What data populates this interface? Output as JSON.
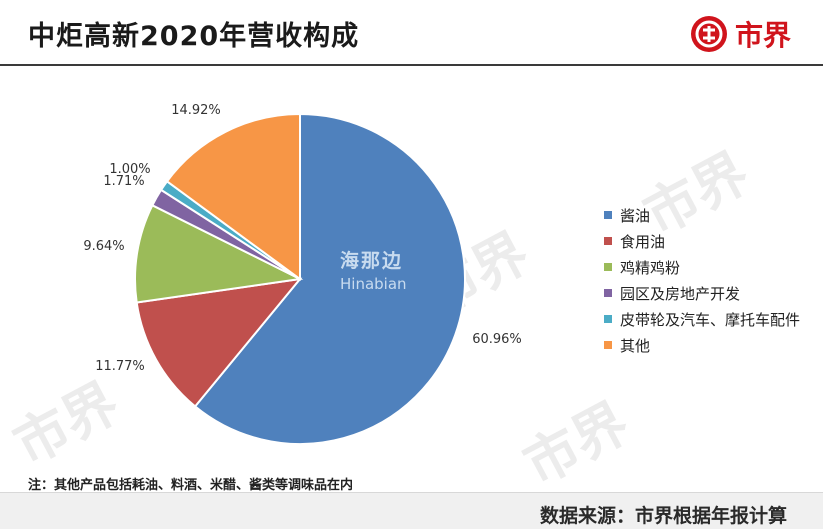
{
  "header": {
    "title": "中炬高新2020年营收构成",
    "brand": "市界"
  },
  "watermark": {
    "text": "市界",
    "center_cn": "海那边",
    "center_en": "Hinabian"
  },
  "chart_data": {
    "type": "pie",
    "title": "中炬高新2020年营收构成",
    "categories": [
      "酱油",
      "食用油",
      "鸡精鸡粉",
      "园区及房地产开发",
      "皮带轮及汽车、摩托车配件",
      "其他"
    ],
    "values": [
      60.96,
      11.77,
      9.64,
      1.71,
      1.0,
      14.92
    ],
    "data_labels": [
      "60.96%",
      "11.77%",
      "9.64%",
      "1.71%",
      "1.00%",
      "14.92%"
    ],
    "colors": [
      "#4f81bd",
      "#c0504d",
      "#9bbb59",
      "#8064a2",
      "#4bacc6",
      "#f79646"
    ],
    "legend_position": "right",
    "start": "12 o'clock",
    "direction": "clockwise"
  },
  "note": "注：其他产品包括耗油、料酒、米醋、酱类等调味品在内",
  "source": "数据来源：市界根据年报计算"
}
